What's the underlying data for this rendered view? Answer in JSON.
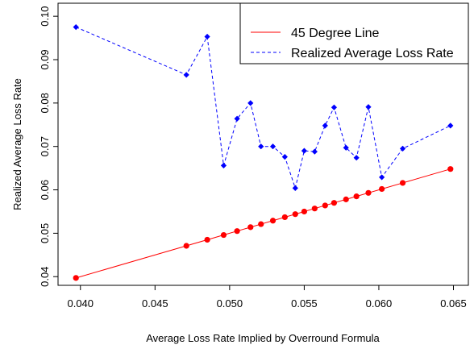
{
  "chart_data": {
    "type": "line",
    "xlabel": "Average Loss Rate Implied by Overround Formula",
    "ylabel": "Realized Average Loss Rate",
    "xlim": [
      0.0385,
      0.066
    ],
    "ylim": [
      0.038,
      0.103
    ],
    "x_ticks": [
      0.04,
      0.045,
      0.05,
      0.055,
      0.06,
      0.065
    ],
    "x_tick_labels": [
      "0.040",
      "0.045",
      "0.050",
      "0.055",
      "0.060",
      "0.065"
    ],
    "y_ticks": [
      0.04,
      0.05,
      0.06,
      0.07,
      0.08,
      0.09,
      0.1
    ],
    "y_tick_labels": [
      "0.04",
      "0.05",
      "0.06",
      "0.07",
      "0.08",
      "0.09",
      "0.10"
    ],
    "grid": false,
    "legend_position": "top-right",
    "x": [
      0.0397,
      0.0471,
      0.0485,
      0.0496,
      0.0505,
      0.0514,
      0.0521,
      0.0529,
      0.0537,
      0.0544,
      0.055,
      0.0557,
      0.0564,
      0.057,
      0.0578,
      0.0585,
      0.0593,
      0.0602,
      0.0616,
      0.0648
    ],
    "series": [
      {
        "name": "45 Degree Line",
        "color": "#ff0000",
        "line_style": "solid",
        "values": [
          0.0397,
          0.0471,
          0.0485,
          0.0496,
          0.0505,
          0.0514,
          0.0521,
          0.0529,
          0.0537,
          0.0544,
          0.055,
          0.0557,
          0.0564,
          0.057,
          0.0578,
          0.0585,
          0.0593,
          0.0602,
          0.0616,
          0.0648
        ]
      },
      {
        "name": "Realized Average Loss Rate",
        "color": "#0000ff",
        "line_style": "dashed",
        "values": [
          0.0975,
          0.0865,
          0.0953,
          0.0656,
          0.0764,
          0.08,
          0.07,
          0.07,
          0.0676,
          0.0604,
          0.069,
          0.0688,
          0.0748,
          0.079,
          0.0697,
          0.0674,
          0.0791,
          0.0629,
          0.0695,
          0.0748
        ]
      }
    ]
  }
}
